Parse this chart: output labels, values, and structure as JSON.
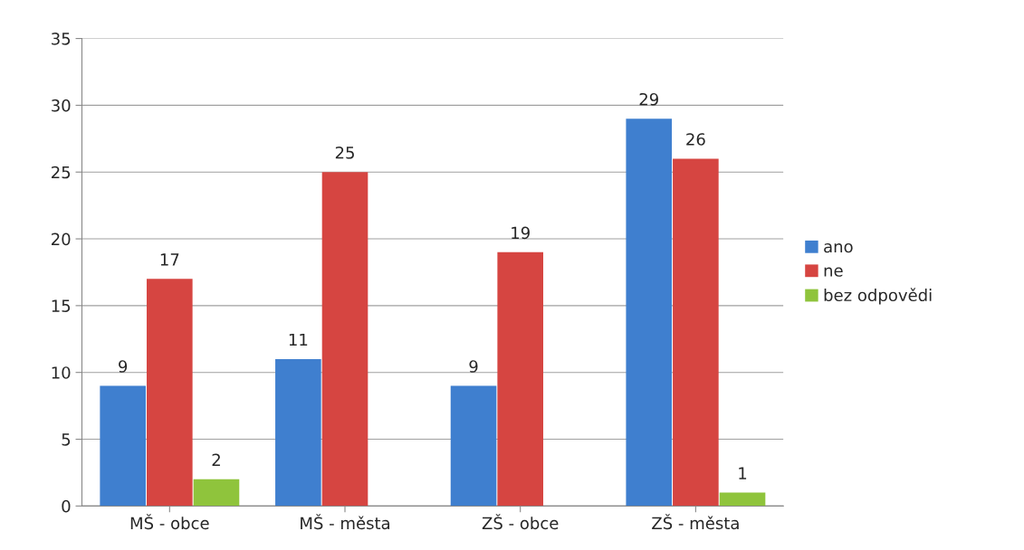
{
  "chart_data": {
    "type": "bar",
    "categories": [
      "MŠ - obce",
      "MŠ - města",
      "ZŠ - obce",
      "ZŠ - města"
    ],
    "series": [
      {
        "name": "ano",
        "color": "#3f7fcf",
        "values": [
          9,
          11,
          9,
          29
        ]
      },
      {
        "name": "ne",
        "color": "#d64541",
        "values": [
          17,
          25,
          19,
          26
        ]
      },
      {
        "name": "bez odpovědi",
        "color": "#8fc43c",
        "values": [
          2,
          null,
          null,
          1
        ]
      }
    ],
    "ylim": [
      0,
      35
    ],
    "yticks": [
      0,
      5,
      10,
      15,
      20,
      25,
      30,
      35
    ],
    "grid": "y",
    "legend": "right",
    "data_labels": true
  }
}
